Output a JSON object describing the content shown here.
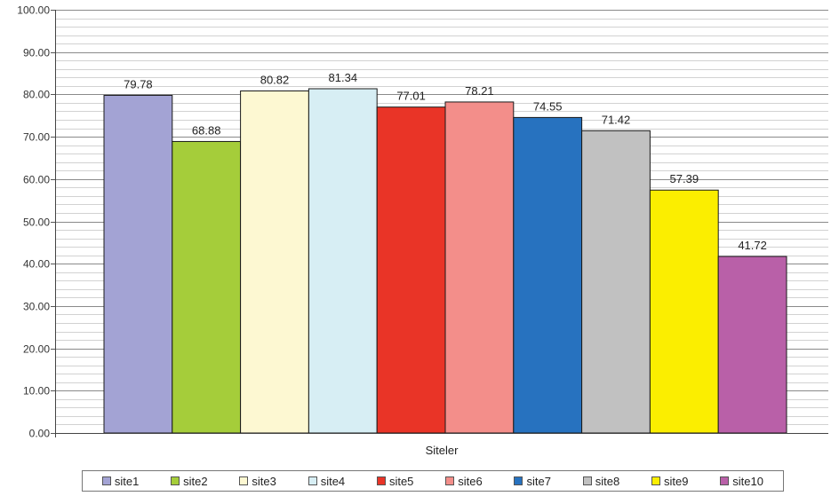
{
  "chart_data": {
    "type": "bar",
    "title": "",
    "xlabel": "Siteler",
    "ylabel": "",
    "ylim": [
      0,
      100
    ],
    "yticks": [
      0,
      10,
      20,
      30,
      40,
      50,
      60,
      70,
      80,
      90,
      100
    ],
    "ytick_labels": [
      "0.00",
      "10.00",
      "20.00",
      "30.00",
      "40.00",
      "50.00",
      "60.00",
      "70.00",
      "80.00",
      "90.00",
      "100.00"
    ],
    "minor_grid_step": 2,
    "grid": true,
    "legend_position": "bottom",
    "series": [
      {
        "name": "site1",
        "value": 79.78,
        "label": "79.78",
        "color": "#a3a3d4"
      },
      {
        "name": "site2",
        "value": 68.88,
        "label": "68.88",
        "color": "#a5cd3a"
      },
      {
        "name": "site3",
        "value": 80.82,
        "label": "80.82",
        "color": "#fdf8d2"
      },
      {
        "name": "site4",
        "value": 81.34,
        "label": "81.34",
        "color": "#d7eef4"
      },
      {
        "name": "site5",
        "value": 77.01,
        "label": "77.01",
        "color": "#e93427"
      },
      {
        "name": "site6",
        "value": 78.21,
        "label": "78.21",
        "color": "#f38e8a"
      },
      {
        "name": "site7",
        "value": 74.55,
        "label": "74.55",
        "color": "#2772bf"
      },
      {
        "name": "site8",
        "value": 71.42,
        "label": "71.42",
        "color": "#c1c1c1"
      },
      {
        "name": "site9",
        "value": 57.39,
        "label": "57.39",
        "color": "#fbee00"
      },
      {
        "name": "site10",
        "value": 41.72,
        "label": "41.72",
        "color": "#b960a8"
      }
    ]
  }
}
